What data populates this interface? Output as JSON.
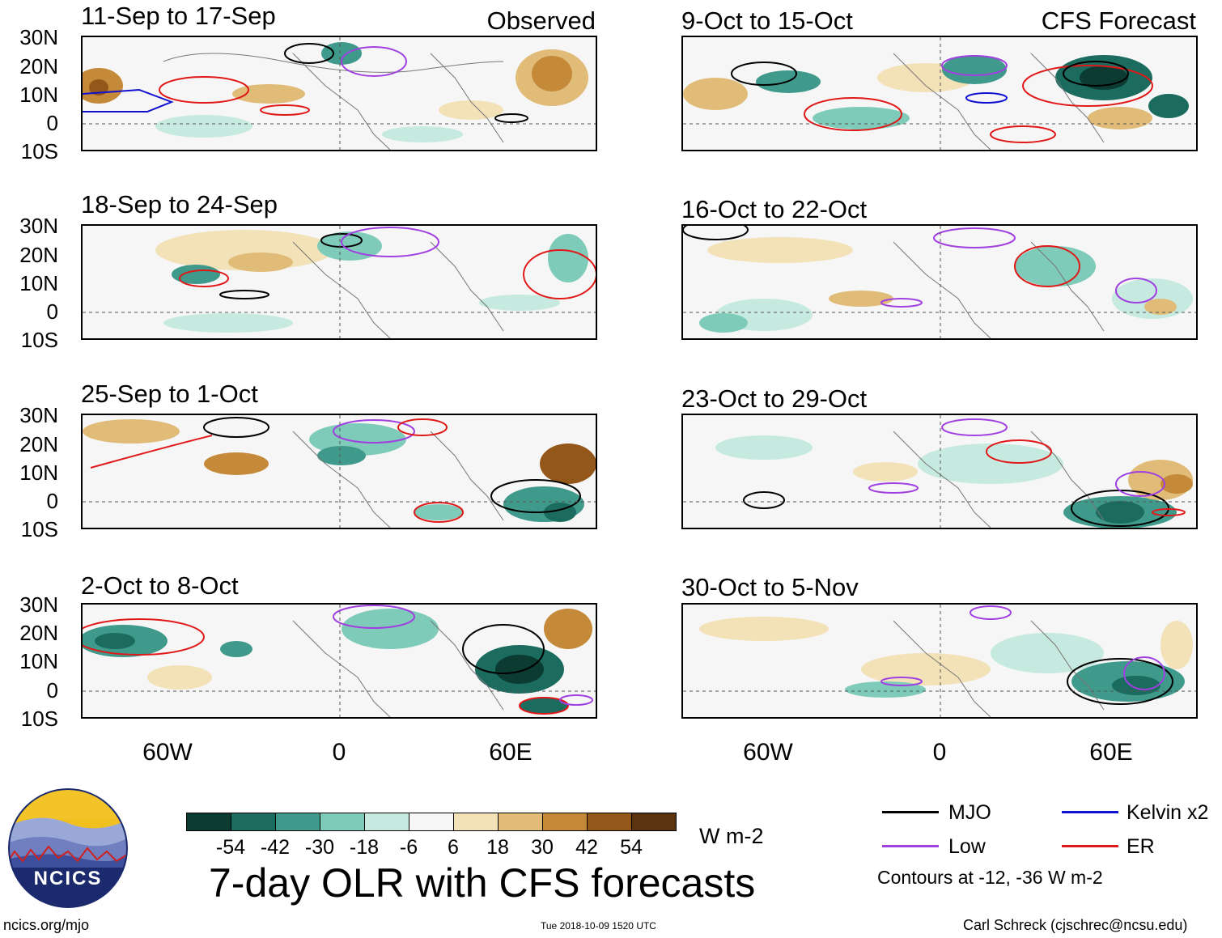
{
  "figure": {
    "title": "7-day OLR with CFS forecasts",
    "url": "ncics.org/mjo",
    "timestamp": "Tue 2018-10-09 1520 UTC",
    "author": "Carl Schreck (cjschrec@ncsu.edu)",
    "logo_text": "NCICS"
  },
  "headers": {
    "observed": "Observed",
    "forecast": "CFS Forecast"
  },
  "axes": {
    "lat_ticks": [
      "30N",
      "20N",
      "10N",
      "0",
      "10S"
    ],
    "lon_ticks": [
      "60W",
      "0",
      "60E"
    ]
  },
  "panels": {
    "observed": [
      {
        "period": "11-Sep to 17-Sep"
      },
      {
        "period": "18-Sep to 24-Sep"
      },
      {
        "period": "25-Sep to 1-Oct"
      },
      {
        "period": "2-Oct to 8-Oct"
      }
    ],
    "forecast": [
      {
        "period": "9-Oct to 15-Oct"
      },
      {
        "period": "16-Oct to 22-Oct"
      },
      {
        "period": "23-Oct to 29-Oct"
      },
      {
        "period": "30-Oct to 5-Nov"
      }
    ]
  },
  "colorbar": {
    "units": "W m-2",
    "ticks": [
      "-54",
      "-42",
      "-30",
      "-18",
      "-6",
      "6",
      "18",
      "30",
      "42",
      "54"
    ],
    "colors": [
      "#0c3b32",
      "#1b6b5f",
      "#3f9a8c",
      "#7fcbb9",
      "#c6eadf",
      "#f6f6f6",
      "#f3e2b8",
      "#e0bc78",
      "#c48a3a",
      "#94571a",
      "#5a3410"
    ]
  },
  "legend": {
    "items": [
      {
        "label": "MJO",
        "color": "#000000"
      },
      {
        "label": "Kelvin x2",
        "color": "#1010d0"
      },
      {
        "label": "Low",
        "color": "#a040e0"
      },
      {
        "label": "ER",
        "color": "#e01818"
      }
    ],
    "note": "Contours at -12, -36 W m-2"
  }
}
